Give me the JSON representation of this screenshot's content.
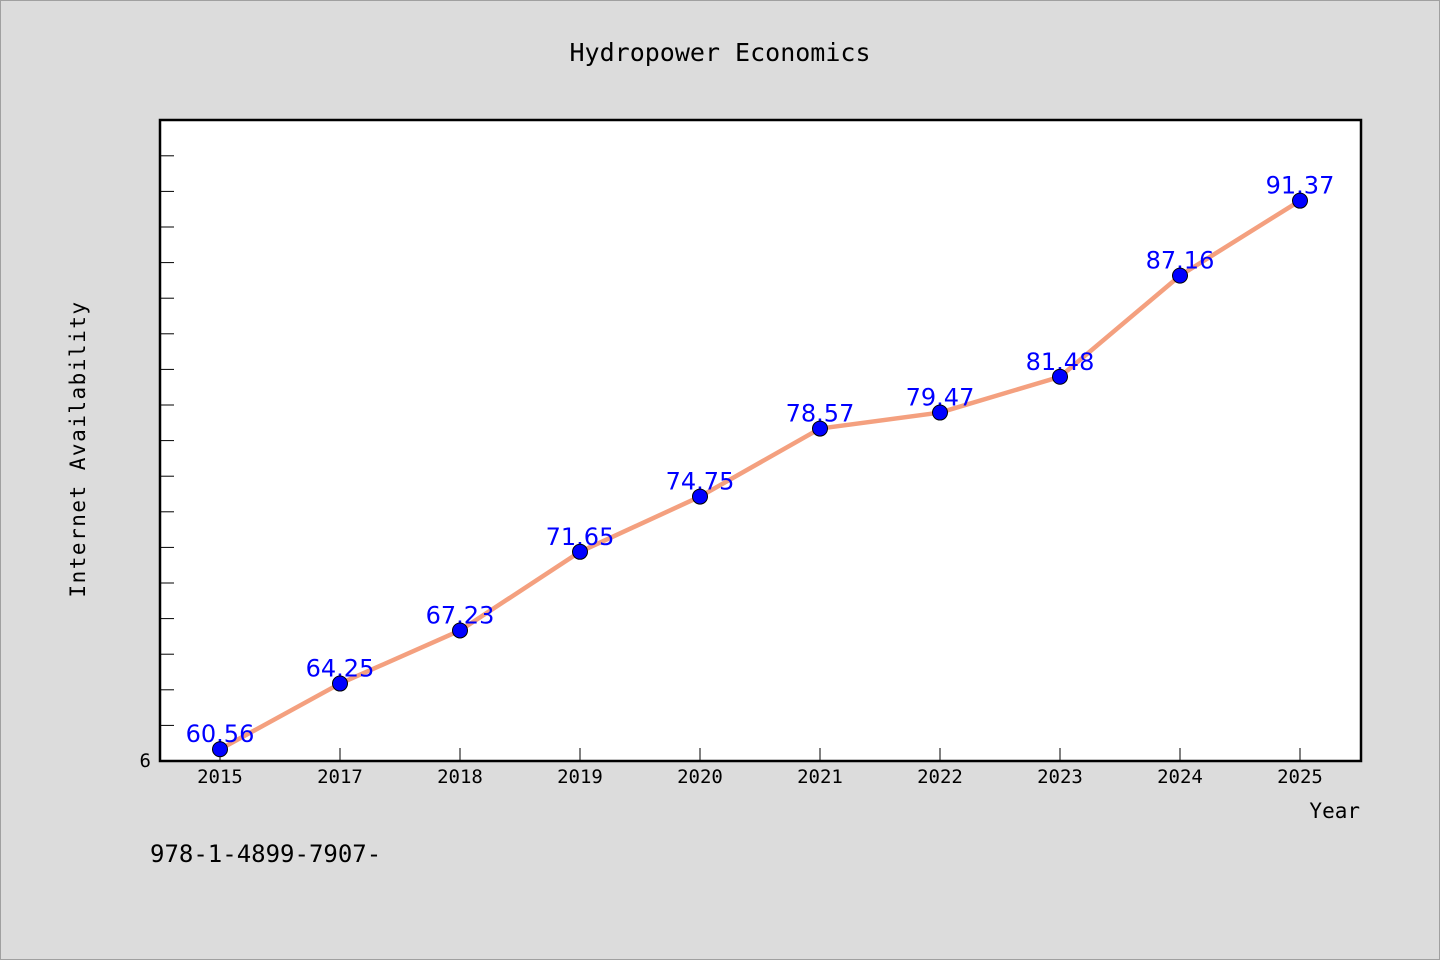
{
  "chart_data": {
    "type": "line",
    "title": "Hydropower Economics",
    "xlabel": "Year",
    "ylabel": "Internet Availability",
    "categories": [
      "2015",
      "2017",
      "2018",
      "2019",
      "2020",
      "2021",
      "2022",
      "2023",
      "2024",
      "2025"
    ],
    "values": [
      60.56,
      64.25,
      67.23,
      71.65,
      74.75,
      78.57,
      79.47,
      81.48,
      87.16,
      91.37
    ],
    "data_labels": [
      "60.56",
      "64.25",
      "67.23",
      "71.65",
      "74.75",
      "78.57",
      "79.47",
      "81.48",
      "87.16",
      "91.37"
    ],
    "y_tick_label": "6",
    "ylim": [
      59.9,
      95.9
    ],
    "grid": false,
    "legend": "none",
    "colors": {
      "line": "#f4a07f",
      "marker": "#0000ff",
      "data_label": "#0000ff",
      "background": "#dcdcdc",
      "plot_background": "#ffffff"
    }
  },
  "footer": {
    "text": "978-1-4899-7907-"
  }
}
